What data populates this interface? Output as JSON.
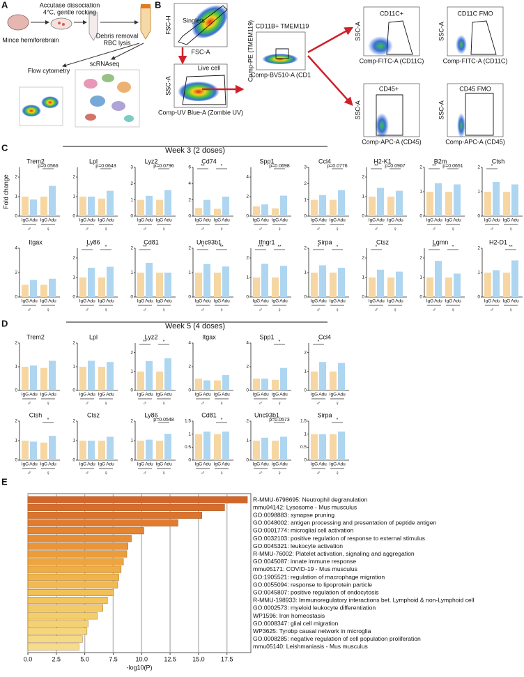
{
  "panel_a": {
    "label": "A",
    "mince": "Mince hemiforebrain",
    "dissociation": [
      "Accutase dissociation",
      "4°C, gentle rocking"
    ],
    "cleanup": [
      "Debris removal",
      "RBC lysis"
    ],
    "flow": "Flow cytometry",
    "scrna": "scRNAseq"
  },
  "panel_b": {
    "label": "B",
    "plots": [
      {
        "y_label": "FSC-H",
        "x_label": "FSC-A",
        "gate": "Singlets"
      },
      {
        "y_label": "SSC-A",
        "x_label": "Comp-UV Blue-A (Zombie UV)",
        "gate": "Live cell"
      },
      {
        "y_label": "Comp-PE (TMEM119)",
        "x_label": "Comp-BV510-A (CD1",
        "gate": "CD11B+ TMEM119"
      },
      {
        "y_label": "SSC-A",
        "x_label": "Comp-FITC-A (CD11C)",
        "gate": "CD11C+"
      },
      {
        "y_label": "SSC-A",
        "x_label": "Comp-FITC-A (CD11C)",
        "gate": "CD11C FMO"
      },
      {
        "y_label": "SSC-A",
        "x_label": "Comp-APC-A (CD45)",
        "gate": "CD45+"
      },
      {
        "y_label": "SSC-A",
        "x_label": "Comp-APC-A (CD45)",
        "gate": "CD45 FMO"
      }
    ]
  },
  "chart_data": [
    {
      "type": "bar-grid",
      "label": "C",
      "title": "Week 3 (2 doses)",
      "y_label": "Fold change",
      "categories": [
        "IgG",
        "Adu",
        "IgG",
        "Adu"
      ],
      "sexes": [
        "♂",
        "♀"
      ],
      "colors": [
        "#f6d7a3",
        "#aed6f1",
        "#f6d7a3",
        "#aed6f1"
      ],
      "rows": [
        [
          {
            "title": "Trem2",
            "values": [
              1.0,
              0.85,
              1.0,
              1.55
            ],
            "ylim": [
              0,
              2.5
            ],
            "yticks": [
              0,
              1,
              2
            ],
            "annotations": {
              "female": "p=0.0566"
            }
          },
          {
            "title": "Lpl",
            "values": [
              1.0,
              1.0,
              0.9,
              1.3
            ],
            "ylim": [
              0,
              2.5
            ],
            "yticks": [
              0,
              1,
              2
            ],
            "annotations": {
              "female": "p=0.0643"
            }
          },
          {
            "title": "Lyz2",
            "values": [
              1.0,
              1.25,
              1.0,
              1.6
            ],
            "ylim": [
              0,
              3
            ],
            "yticks": [
              0,
              1,
              2,
              3
            ],
            "annotations": {
              "female": "p=0.0796"
            }
          },
          {
            "title": "Cd74",
            "values": [
              1.0,
              2.0,
              0.9,
              2.4
            ],
            "ylim": [
              0,
              6
            ],
            "yticks": [
              0,
              2,
              4,
              6
            ],
            "annotations": {
              "male": "**",
              "female": "*"
            }
          },
          {
            "title": "Spp1",
            "values": [
              1.0,
              1.2,
              0.8,
              2.1
            ],
            "ylim": [
              0,
              5
            ],
            "yticks": [
              0,
              2,
              4
            ],
            "annotations": {
              "female": "p=0.0698"
            }
          },
          {
            "title": "Ccl4",
            "values": [
              1.0,
              1.3,
              1.0,
              1.6
            ],
            "ylim": [
              0,
              3
            ],
            "yticks": [
              0,
              1,
              2,
              3
            ],
            "annotations": {
              "female": "p=0.0776"
            }
          },
          {
            "title": "H2-K1",
            "values": [
              1.0,
              1.45,
              1.0,
              1.3
            ],
            "ylim": [
              0,
              2.5
            ],
            "yticks": [
              0,
              1,
              2
            ],
            "annotations": {
              "male": "**",
              "female": "p=0.0907"
            }
          },
          {
            "title": "B2m",
            "values": [
              1.0,
              1.35,
              1.0,
              1.3
            ],
            "ylim": [
              0,
              2
            ],
            "yticks": [
              0,
              1,
              2
            ],
            "annotations": {
              "male": "**",
              "female": "p=0.0651"
            }
          },
          {
            "title": "Ctsh",
            "values": [
              1.0,
              1.4,
              1.0,
              1.3
            ],
            "ylim": [
              0,
              2
            ],
            "yticks": [
              0,
              1,
              2
            ],
            "annotations": {
              "male": "*"
            }
          }
        ],
        [
          {
            "title": "Itgax",
            "values": [
              1.0,
              1.4,
              1.0,
              1.5
            ],
            "ylim": [
              0,
              4
            ],
            "yticks": [
              0,
              2,
              4
            ],
            "annotations": {}
          },
          {
            "title": "Ly86",
            "values": [
              1.0,
              1.5,
              1.0,
              1.55
            ],
            "ylim": [
              0,
              2.5
            ],
            "yticks": [
              0,
              1,
              2
            ],
            "annotations": {
              "male": "*",
              "female": "*"
            }
          },
          {
            "title": "Cd81",
            "values": [
              1.0,
              1.4,
              1.0,
              1.0
            ],
            "ylim": [
              0,
              2
            ],
            "yticks": [
              0,
              1,
              2
            ],
            "annotations": {
              "male": "**"
            }
          },
          {
            "title": "Unc93b1",
            "values": [
              1.0,
              1.35,
              1.0,
              1.25
            ],
            "ylim": [
              0,
              2
            ],
            "yticks": [
              0,
              1,
              2
            ],
            "annotations": {
              "male": "*",
              "female": "**"
            }
          },
          {
            "title": "Ifngr1",
            "values": [
              1.0,
              1.7,
              1.0,
              1.6
            ],
            "ylim": [
              0,
              2.5
            ],
            "yticks": [
              0,
              1,
              2
            ],
            "annotations": {
              "male": "***",
              "female": "**"
            }
          },
          {
            "title": "Sirpa",
            "values": [
              1.0,
              1.3,
              1.0,
              1.2
            ],
            "ylim": [
              0,
              2
            ],
            "yticks": [
              0,
              1,
              2
            ],
            "annotations": {
              "male": "*",
              "female": "*"
            }
          },
          {
            "title": "Ctsz",
            "values": [
              1.0,
              1.4,
              1.0,
              1.3
            ],
            "ylim": [
              0,
              2.5
            ],
            "yticks": [
              0,
              1,
              2
            ],
            "annotations": {
              "male": "*"
            }
          },
          {
            "title": "Lgmn",
            "values": [
              1.0,
              1.85,
              1.0,
              1.2
            ],
            "ylim": [
              0,
              2.5
            ],
            "yticks": [
              0,
              1,
              2
            ],
            "annotations": {
              "male": "**",
              "female": "*"
            }
          },
          {
            "title": "H2-D1",
            "values": [
              1.0,
              1.1,
              1.0,
              1.5
            ],
            "ylim": [
              0,
              2
            ],
            "yticks": [
              0,
              1,
              2
            ],
            "annotations": {
              "female": "**"
            }
          }
        ]
      ]
    },
    {
      "type": "bar-grid",
      "label": "D",
      "title": "Week 5 (4 doses)",
      "categories": [
        "IgG",
        "Adu",
        "IgG",
        "Adu"
      ],
      "sexes": [
        "♂",
        "♀"
      ],
      "colors": [
        "#f6d7a3",
        "#aed6f1",
        "#f6d7a3",
        "#aed6f1"
      ],
      "rows": [
        [
          {
            "title": "Trem2",
            "values": [
              1.0,
              1.05,
              0.95,
              1.25
            ],
            "ylim": [
              0,
              2
            ],
            "yticks": [
              0,
              1,
              2
            ],
            "annotations": {}
          },
          {
            "title": "Lpl",
            "values": [
              1.0,
              1.25,
              1.0,
              1.2
            ],
            "ylim": [
              0,
              2
            ],
            "yticks": [
              0,
              1,
              2
            ],
            "annotations": {}
          },
          {
            "title": "Lyz2",
            "values": [
              1.0,
              1.55,
              1.0,
              1.7
            ],
            "ylim": [
              0,
              2.5
            ],
            "yticks": [
              0,
              1,
              2
            ],
            "annotations": {
              "male": "**",
              "female": "*"
            }
          },
          {
            "title": "Itgax",
            "values": [
              1.0,
              0.85,
              0.85,
              1.3
            ],
            "ylim": [
              0,
              4
            ],
            "yticks": [
              0,
              2,
              4
            ],
            "annotations": {}
          },
          {
            "title": "Spp1",
            "values": [
              1.0,
              1.0,
              0.9,
              1.9
            ],
            "ylim": [
              0,
              4
            ],
            "yticks": [
              0,
              2,
              4
            ],
            "annotations": {
              "female": "*"
            }
          },
          {
            "title": "Ccl4",
            "values": [
              1.0,
              1.5,
              1.0,
              1.45
            ],
            "ylim": [
              0,
              2.5
            ],
            "yticks": [
              0,
              1,
              2
            ],
            "annotations": {
              "male": "*"
            }
          }
        ],
        [
          {
            "title": "Ctsh",
            "values": [
              1.0,
              0.95,
              0.9,
              1.25
            ],
            "ylim": [
              0,
              2
            ],
            "yticks": [
              0,
              1,
              2
            ],
            "annotations": {
              "female": "*"
            }
          },
          {
            "title": "Ctsz",
            "values": [
              1.0,
              1.0,
              1.0,
              1.2
            ],
            "ylim": [
              0,
              2
            ],
            "yticks": [
              0,
              1,
              2
            ],
            "annotations": {}
          },
          {
            "title": "Ly86",
            "values": [
              1.0,
              1.05,
              1.0,
              1.35
            ],
            "ylim": [
              0,
              2
            ],
            "yticks": [
              0,
              1,
              2
            ],
            "annotations": {
              "female": "p=0.0548"
            }
          },
          {
            "title": "Cd81",
            "values": [
              1.0,
              1.1,
              1.0,
              1.1
            ],
            "ylim": [
              0,
              1.5
            ],
            "yticks": [
              0,
              0.5,
              1,
              1.5
            ],
            "annotations": {
              "female": "*"
            }
          },
          {
            "title": "Unc93b1",
            "values": [
              1.0,
              1.15,
              1.0,
              1.2
            ],
            "ylim": [
              0,
              2
            ],
            "yticks": [
              0,
              1,
              2
            ],
            "annotations": {
              "female": "p=0.0573"
            }
          },
          {
            "title": "Sirpa",
            "values": [
              1.0,
              1.0,
              1.0,
              1.1
            ],
            "ylim": [
              0,
              1.5
            ],
            "yticks": [
              0,
              0.5,
              1,
              1.5
            ],
            "annotations": {
              "female": "*"
            }
          }
        ]
      ]
    },
    {
      "type": "barh",
      "label": "E",
      "x_label": "-log10(P)",
      "categories": [
        "R-MMU-6798695: Neutrophil degranulation",
        "mmu04142: Lysosome - Mus musculus",
        "GO:0098883: synapse pruning",
        "GO:0048002: antigen processing and presentation of peptide antigen",
        "GO:0001774: microglial cell activation",
        "GO:0032103: positive regulation of response to external stimulus",
        "GO:0045321: leukocyte activation",
        "R-MMU-76002: Platelet activation, signaling and aggregation",
        "GO:0045087: innate immune response",
        "mmu05171: COVID-19 - Mus musculus",
        "GO:1905521: regulation of macrophage migration",
        "GO:0055094: response to lipoprotein particle",
        "GO:0045807: positive regulation of endocytosis",
        "R-MMU-198933: Immunoregulatory interactions bet. Lymphoid & non-Lymphoid cell",
        "GO:0002573: myeloid leukocyte differentiation",
        "WP1596: Iron homeostasis",
        "GO:0008347: glial cell migration",
        "WP3625: Tyrobp causal network in microglia",
        "GO:0008285: negative regulation of cell population proliferation",
        "mmu05140: Leishmaniasis - Mus musculus"
      ],
      "values": [
        19.3,
        17.3,
        15.3,
        13.2,
        10.2,
        9.1,
        8.8,
        8.7,
        8.4,
        8.2,
        8.0,
        7.9,
        7.5,
        7.0,
        6.6,
        6.1,
        5.3,
        5.2,
        4.8,
        4.5
      ],
      "colors": [
        "#d4652a",
        "#d86c2c",
        "#dc742e",
        "#e07c30",
        "#e38532",
        "#e68d35",
        "#e99538",
        "#eb9d3c",
        "#eda540",
        "#efad45",
        "#f0b44a",
        "#f1ba50",
        "#f2c056",
        "#f3c55d",
        "#f3ca64",
        "#f4ce6b",
        "#f4d273",
        "#f5d67b",
        "#f5d983",
        "#f5dc8c"
      ],
      "xlim": [
        0,
        19.6
      ],
      "xticks": [
        {
          "value": 0,
          "label": "0.0"
        },
        {
          "value": 2.5,
          "label": "2.5"
        },
        {
          "value": 5,
          "label": "5.0"
        },
        {
          "value": 7.5,
          "label": "7.5"
        },
        {
          "value": 10,
          "label": "10.0"
        },
        {
          "value": 12.5,
          "label": "12.5"
        },
        {
          "value": 15,
          "label": "15.0"
        },
        {
          "value": 17.5,
          "label": "17.5"
        }
      ],
      "grid": true
    }
  ]
}
